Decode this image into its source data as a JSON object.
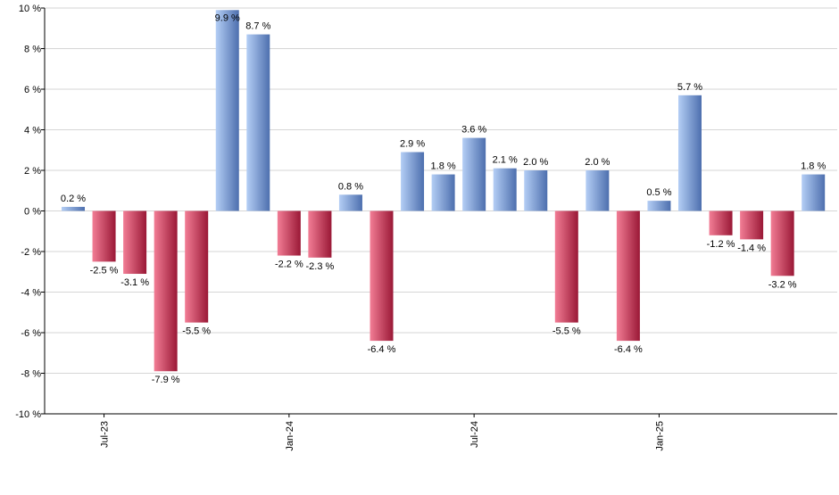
{
  "chart_data": {
    "type": "bar",
    "title": "",
    "xlabel": "",
    "ylabel": "",
    "ylim": [
      -10,
      10
    ],
    "ytick_values": [
      10,
      8,
      6,
      4,
      2,
      0,
      -2,
      -4,
      -6,
      -8,
      -10
    ],
    "ytick_labels": [
      "10 %",
      "8 %",
      "6 %",
      "4 %",
      "2 %",
      "0 %",
      "-2 %",
      "-4 %",
      "-6 %",
      "-8 %",
      "-10 %"
    ],
    "grid": true,
    "legend": "none",
    "values": [
      0.2,
      -2.5,
      -3.1,
      -7.9,
      -5.5,
      9.9,
      8.7,
      -2.2,
      -2.3,
      0.8,
      -6.4,
      2.9,
      1.8,
      3.6,
      2.1,
      2.0,
      -5.5,
      2.0,
      -6.4,
      0.5,
      5.7,
      -1.2,
      -1.4,
      -3.2,
      1.8
    ],
    "data_labels": [
      "0.2 %",
      "-2.5 %",
      "-3.1 %",
      "-7.9 %",
      "-5.5 %",
      "9.9 %",
      "8.7 %",
      "-2.2 %",
      "-2.3 %",
      "0.8 %",
      "-6.4 %",
      "2.9 %",
      "1.8 %",
      "3.6 %",
      "2.1 %",
      "2.0 %",
      "-5.5 %",
      "2.0 %",
      "-6.4 %",
      "0.5 %",
      "5.7 %",
      "-1.2 %",
      "-1.4 %",
      "-3.2 %",
      "1.8 %"
    ],
    "x_tick_labels": [
      {
        "index": 1,
        "label": "Jul-23"
      },
      {
        "index": 7,
        "label": "Jan-24"
      },
      {
        "index": 13,
        "label": "Jul-24"
      },
      {
        "index": 19,
        "label": "Jan-25"
      }
    ],
    "colors": {
      "positive_light": "#b4cef5",
      "positive_dark": "#4d6fae",
      "negative_light": "#f27d95",
      "negative_dark": "#9a1836",
      "grid": "#d6d6d6",
      "axis": "#000000"
    }
  }
}
